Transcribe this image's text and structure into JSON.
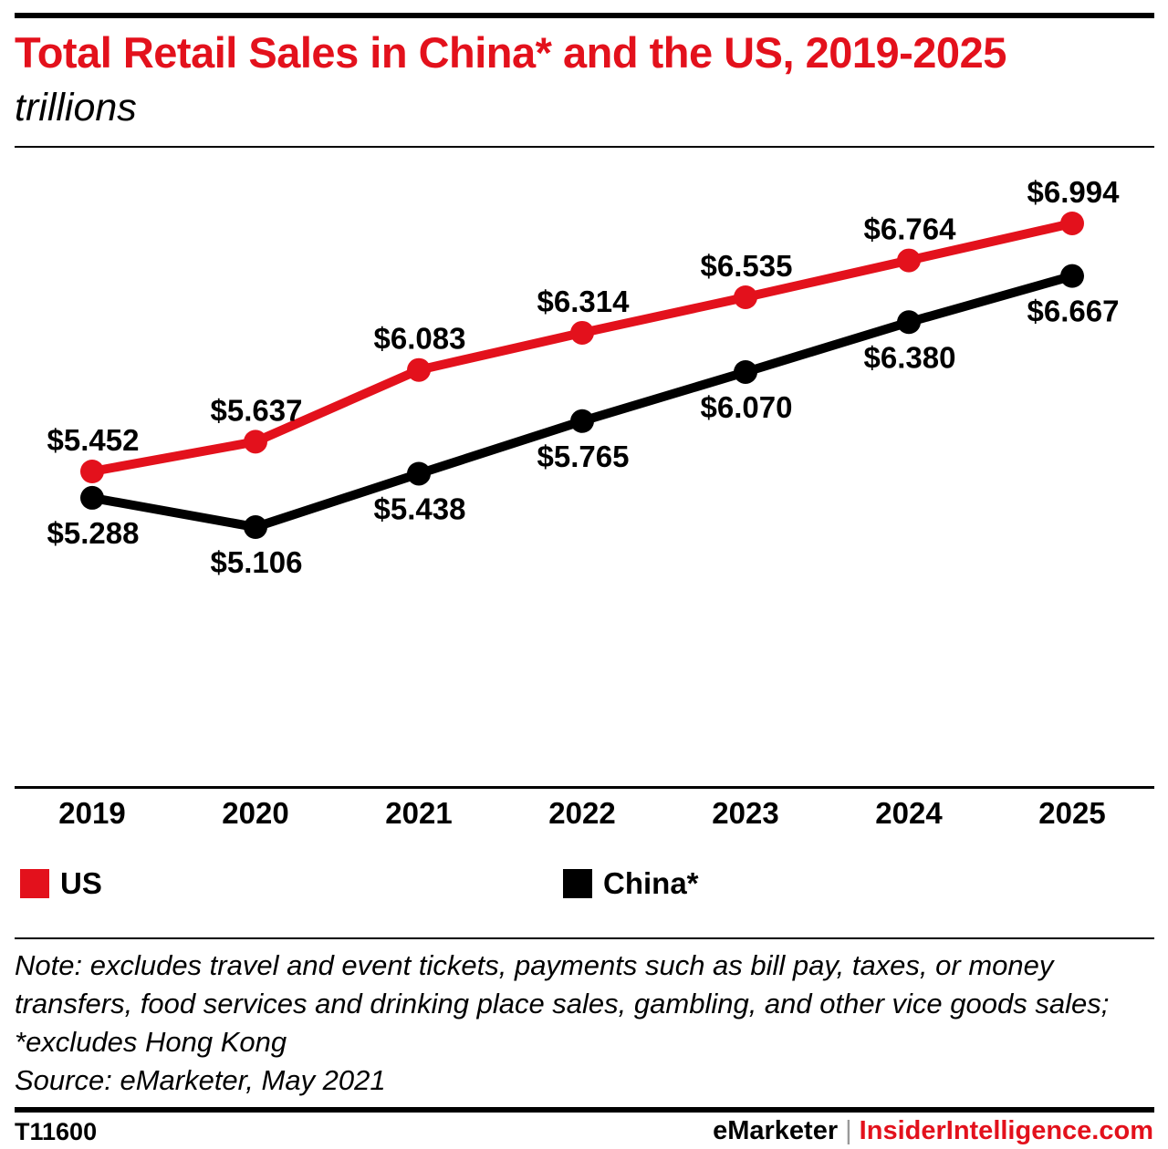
{
  "header": {
    "title": "Total Retail Sales in China* and the US, 2019-2025",
    "subtitle": "trillions"
  },
  "chart_data": {
    "type": "line",
    "title": "Total Retail Sales in China* and the US, 2019-2025",
    "subtitle": "trillions",
    "categories": [
      "2019",
      "2020",
      "2021",
      "2022",
      "2023",
      "2024",
      "2025"
    ],
    "series": [
      {
        "name": "US",
        "color": "#e3111c",
        "values": [
          5.452,
          5.637,
          6.083,
          6.314,
          6.535,
          6.764,
          6.994
        ],
        "labels": [
          "$5.452",
          "$5.637",
          "$6.083",
          "$6.314",
          "$6.535",
          "$6.764",
          "$6.994"
        ],
        "label_position": "above"
      },
      {
        "name": "China*",
        "color": "#000000",
        "values": [
          5.288,
          5.106,
          5.438,
          5.765,
          6.07,
          6.38,
          6.667
        ],
        "labels": [
          "$5.288",
          "$5.106",
          "$5.438",
          "$5.765",
          "$6.070",
          "$6.380",
          "$6.667"
        ],
        "label_position": "below"
      }
    ],
    "grid": false,
    "legend_position": "bottom"
  },
  "legend": {
    "items": [
      {
        "label": "US",
        "color": "#e3111c"
      },
      {
        "label": "China*",
        "color": "#000000"
      }
    ]
  },
  "notes": {
    "note": "Note: excludes travel and event tickets, payments such as bill pay, taxes, or money transfers, food services and drinking place sales, gambling, and other vice goods sales; *excludes Hong Kong",
    "source": "Source: eMarketer, May 2021"
  },
  "footer": {
    "chart_id": "T11600",
    "brand_primary": "eMarketer",
    "separator": "|",
    "brand_secondary": "InsiderIntelligence.com"
  }
}
